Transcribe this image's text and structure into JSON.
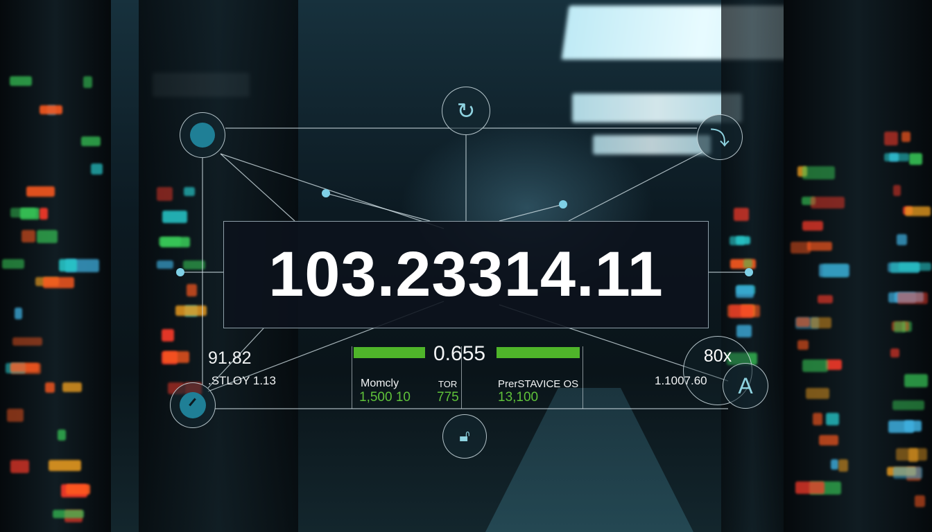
{
  "display": {
    "main_value": "103.23314.11",
    "left_value": "91.82",
    "left_label": ".STLOY 1.13",
    "center_value": "0.655",
    "stats": [
      {
        "label": "Momcly",
        "value": "1,500 10"
      },
      {
        "label": "TOR",
        "value": "775"
      },
      {
        "label": "PrerSTAVICE OS",
        "value": "13,100"
      }
    ],
    "right_zoom": "80x",
    "right_value": "1.1007.60",
    "font_icon_letter": "A"
  },
  "icons": [
    "circle-node-icon",
    "refresh-icon",
    "download-arrow-icon",
    "gauge-icon",
    "lock-icon",
    "font-size-icon"
  ],
  "colors": {
    "accent_green": "#4fb52a",
    "accent_teal": "#2a8ea3",
    "panel_bg": "#0c121c"
  }
}
